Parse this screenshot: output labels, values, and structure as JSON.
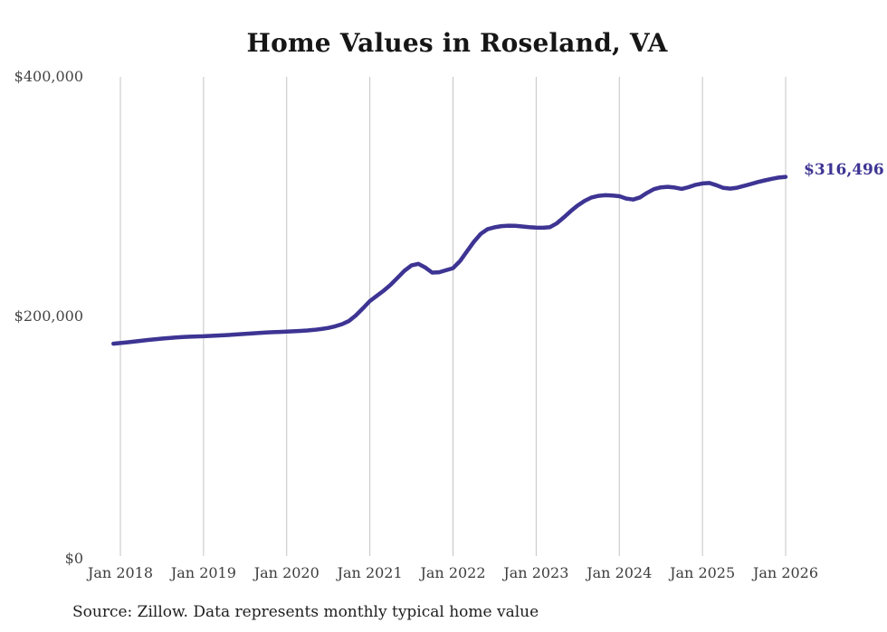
{
  "title": "Home Values in Roseland, VA",
  "source_note": "Source: Zillow. Data represents monthly typical home value",
  "end_annotation": "$316,496",
  "colors": {
    "line": "#3d3493",
    "gridline": "#c4c4c4",
    "axis_text": "#454545",
    "title_text": "#161616",
    "note_text": "#1e1e1e"
  },
  "chart_data": {
    "type": "line",
    "title": "Home Values in Roseland, VA",
    "xlabel": "",
    "ylabel": "",
    "ylim": [
      0,
      400000
    ],
    "grid": "vertical-only",
    "legend": "none",
    "y_ticks": [
      {
        "value": 0,
        "label": "$0"
      },
      {
        "value": 200000,
        "label": "$200,000"
      },
      {
        "value": 400000,
        "label": "$400,000"
      }
    ],
    "x_tick_labels": [
      "Jan 2018",
      "Jan 2019",
      "Jan 2020",
      "Jan 2021",
      "Jan 2022",
      "Jan 2023",
      "Jan 2024",
      "Jan 2025",
      "Jan 2026"
    ],
    "series": [
      {
        "name": "Monthly typical home value (USD)",
        "frequency": "monthly",
        "start_month": "2017-12",
        "end_month": "2026-01",
        "last_value": 316496,
        "last_value_label": "$316,496",
        "values": [
          177300,
          177800,
          178400,
          179000,
          179700,
          180400,
          181000,
          181500,
          182000,
          182400,
          182800,
          183100,
          183300,
          183500,
          183800,
          184100,
          184400,
          184700,
          185100,
          185500,
          185900,
          186300,
          186600,
          186900,
          187100,
          187300,
          187600,
          187900,
          188300,
          188800,
          189500,
          190400,
          191800,
          193600,
          196300,
          201000,
          206800,
          212800,
          217200,
          221500,
          226500,
          232300,
          238200,
          242600,
          243900,
          240800,
          236600,
          236900,
          238600,
          240300,
          246200,
          254200,
          262300,
          268900,
          272900,
          274400,
          275400,
          275800,
          275600,
          275100,
          274600,
          274200,
          274000,
          274600,
          277800,
          282700,
          288000,
          292700,
          296500,
          299300,
          300700,
          301200,
          300900,
          300400,
          298400,
          297600,
          299400,
          303200,
          306300,
          307800,
          308200,
          307600,
          306500,
          307900,
          309900,
          311000,
          311400,
          309600,
          307300,
          306700,
          307500,
          309000,
          310600,
          312200,
          313600,
          314900,
          315900,
          316496
        ]
      }
    ]
  }
}
